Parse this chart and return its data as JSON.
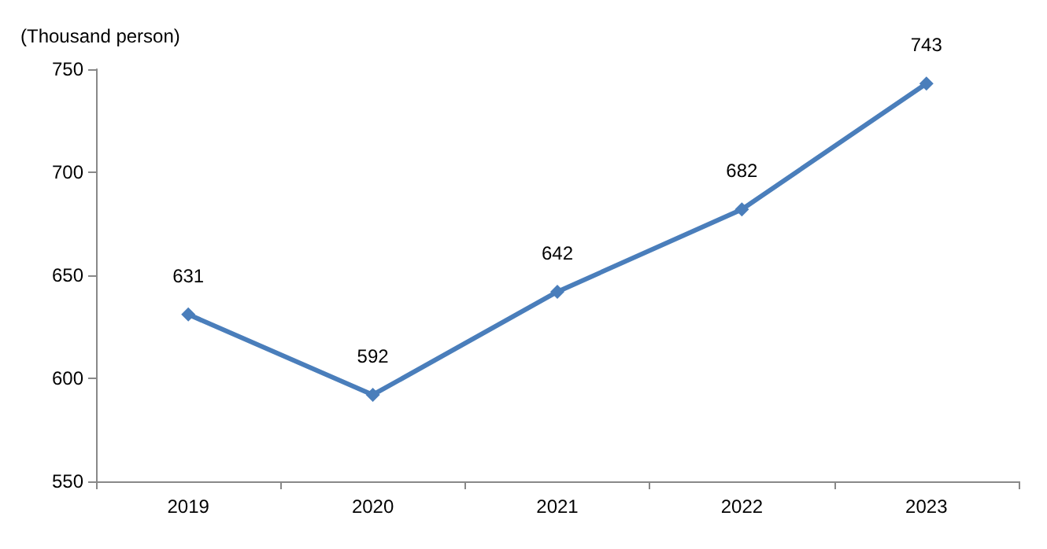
{
  "chart_data": {
    "type": "line",
    "ylabel": "(Thousand person)",
    "categories": [
      "2019",
      "2020",
      "2021",
      "2022",
      "2023"
    ],
    "series": [
      {
        "color": "#4a7ebb",
        "values": [
          631,
          592,
          642,
          682,
          743
        ]
      }
    ],
    "ylim": [
      550,
      750
    ],
    "yticks": [
      550,
      600,
      650,
      700,
      750
    ],
    "grid": false,
    "marker": "diamond",
    "line_style": "solid",
    "data_labels": true
  }
}
